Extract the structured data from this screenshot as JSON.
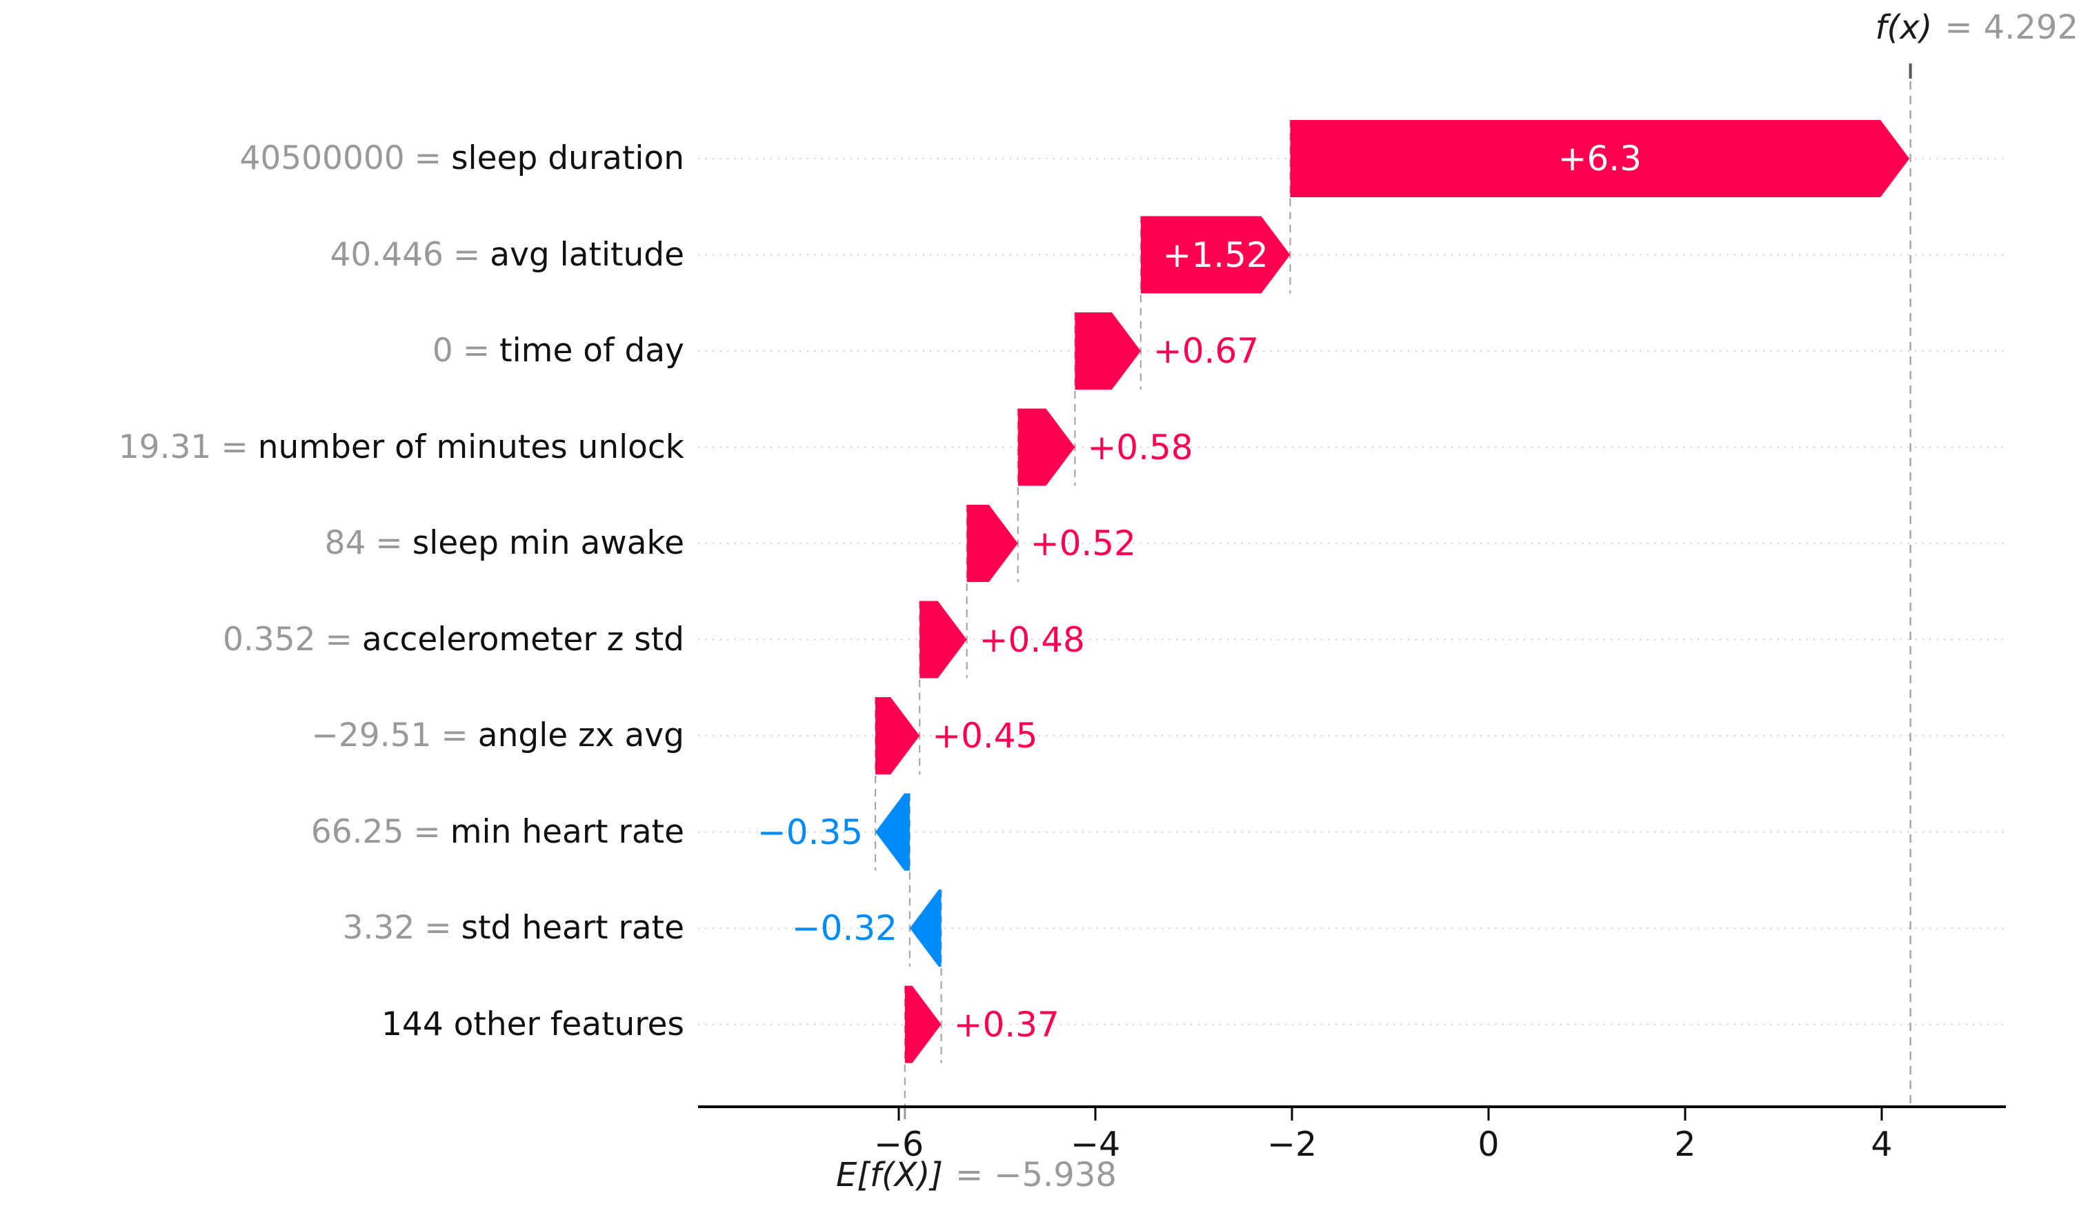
{
  "figure": {
    "fx_label": "f(x)",
    "fx_equals": "=",
    "fx_value": "4.292",
    "ef_label": "E[f(X)]",
    "ef_equals": "=",
    "ef_value": "−5.938"
  },
  "chart_data": {
    "type": "bar",
    "variant": "shap-waterfall",
    "title": "",
    "xlabel": "",
    "ylabel": "",
    "base_value": -5.938,
    "fx_value": 4.292,
    "x_axis": {
      "ticks": [
        -6,
        -4,
        -2,
        0,
        2,
        4
      ],
      "tick_labels": [
        "−6",
        "−4",
        "−2",
        "0",
        "2",
        "4"
      ],
      "range": [
        -8.04,
        5.26
      ],
      "grid": "dotted-row-lines"
    },
    "equals_sign": "=",
    "colors": {
      "positive": "#ff0051",
      "negative": "#008bfb",
      "grid": "#d8d8d8",
      "connector": "#a6a6a6",
      "reference_line": "#9b9b9b",
      "axis": "#000000",
      "muted_text": "#9a9a9a",
      "text": "#101010"
    },
    "rows": [
      {
        "feature_value": "40500000",
        "feature": "sleep duration",
        "shap": 6.3,
        "label": "+6.3"
      },
      {
        "feature_value": "40.446",
        "feature": "avg latitude",
        "shap": 1.52,
        "label": "+1.52"
      },
      {
        "feature_value": "0",
        "feature": "time of day",
        "shap": 0.67,
        "label": "+0.67"
      },
      {
        "feature_value": "19.31",
        "feature": "number of minutes unlock",
        "shap": 0.58,
        "label": "+0.58"
      },
      {
        "feature_value": "84",
        "feature": "sleep min awake",
        "shap": 0.52,
        "label": "+0.52"
      },
      {
        "feature_value": "0.352",
        "feature": "accelerometer z std",
        "shap": 0.48,
        "label": "+0.48"
      },
      {
        "feature_value": "−29.51",
        "feature": "angle zx avg",
        "shap": 0.45,
        "label": "+0.45"
      },
      {
        "feature_value": "66.25",
        "feature": "min heart rate",
        "shap": -0.35,
        "label": "−0.35"
      },
      {
        "feature_value": "3.32",
        "feature": "std heart rate",
        "shap": -0.32,
        "label": "−0.32"
      },
      {
        "feature_value": null,
        "feature": "144 other features",
        "shap": 0.37,
        "label": "+0.37"
      }
    ]
  }
}
